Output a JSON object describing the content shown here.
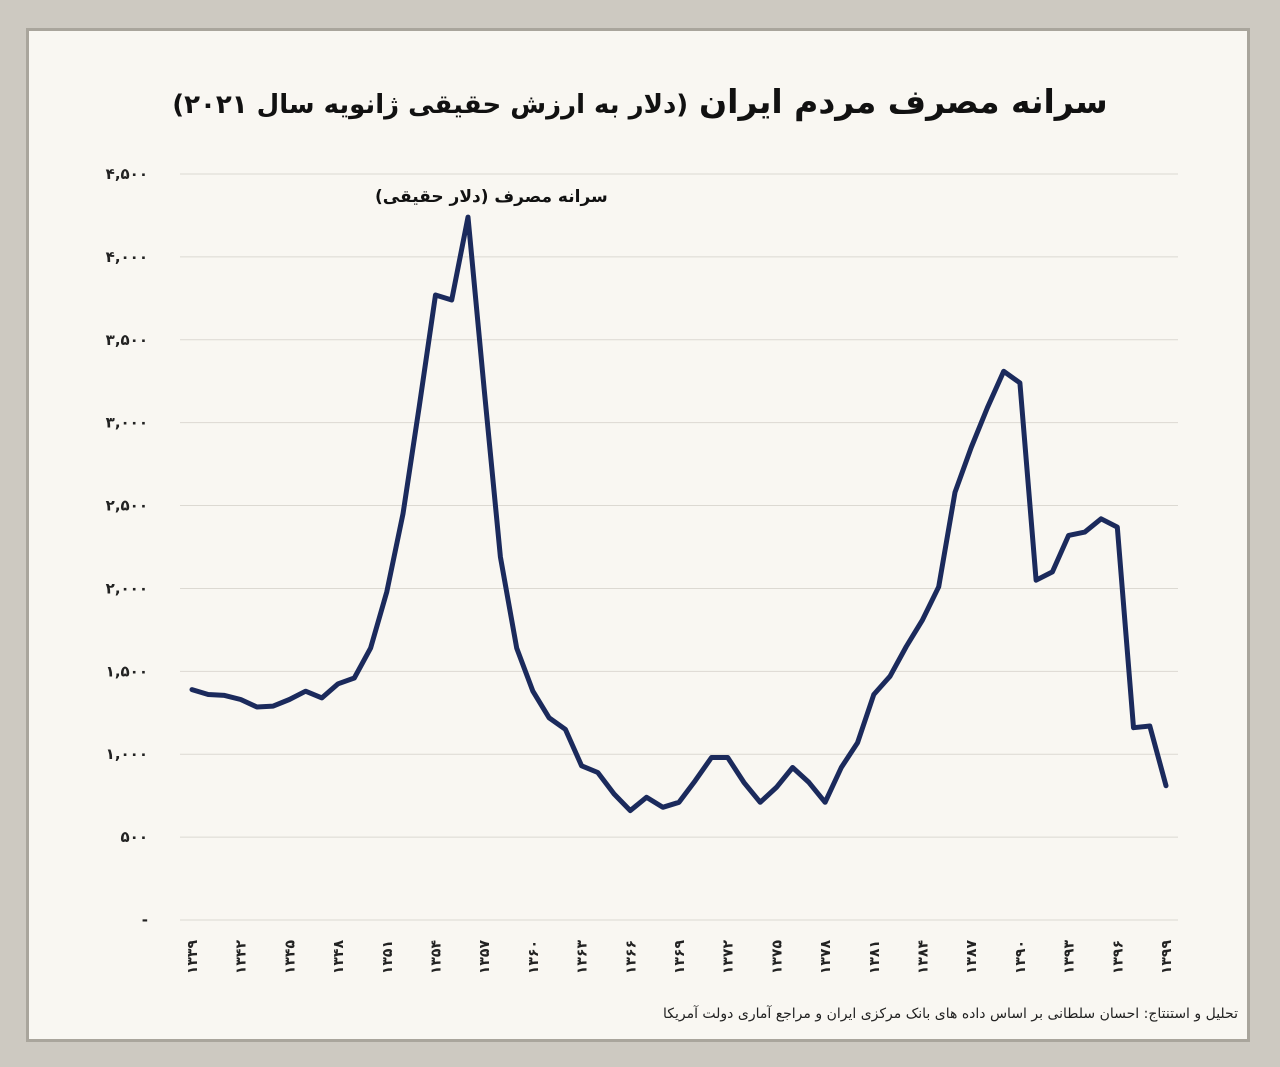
{
  "title_main": "سرانه مصرف مردم ایران",
  "title_sub": "(دلار به ارزش حقیقی ژانویه سال ۲۰۲۱)",
  "source": "تحلیل و استنتاج: احسان سلطانی بر اساس داده های بانک مرکزی ایران و مراجع آماری دولت آمریکا",
  "chart_data": {
    "type": "line",
    "title": "سرانه مصرف مردم ایران (دلار به ارزش حقیقی ژانویه سال ۲۰۲۱)",
    "ylabel": "سرانه مصرف (دلار حقیقی)",
    "xlabel": "",
    "ylim": [
      0,
      4500
    ],
    "yticks": [
      0,
      500,
      1000,
      1500,
      2000,
      2500,
      3000,
      3500,
      4000,
      4500
    ],
    "ytick_labels": [
      "-",
      "۵۰۰",
      "۱,۰۰۰",
      "۱,۵۰۰",
      "۲,۰۰۰",
      "۲,۵۰۰",
      "۳,۰۰۰",
      "۳,۵۰۰",
      "۴,۰۰۰",
      "۴,۵۰۰"
    ],
    "xtick_labels": [
      "۱۳۳۹",
      "۱۳۴۲",
      "۱۳۴۵",
      "۱۳۴۸",
      "۱۳۵۱",
      "۱۳۵۴",
      "۱۳۵۷",
      "۱۳۶۰",
      "۱۳۶۳",
      "۱۳۶۶",
      "۱۳۶۹",
      "۱۳۷۲",
      "۱۳۷۵",
      "۱۳۷۸",
      "۱۳۸۱",
      "۱۳۸۴",
      "۱۳۸۷",
      "۱۳۹۰",
      "۱۳۹۳",
      "۱۳۹۶",
      "۱۳۹۹"
    ],
    "xtick_values": [
      1339,
      1342,
      1345,
      1348,
      1351,
      1354,
      1357,
      1360,
      1363,
      1366,
      1369,
      1372,
      1375,
      1378,
      1381,
      1384,
      1387,
      1390,
      1393,
      1396,
      1399
    ],
    "grid": true,
    "line_color": "#1b2a5c",
    "series": [
      {
        "x": [
          1339,
          1340,
          1341,
          1342,
          1343,
          1344,
          1345,
          1346,
          1347,
          1348,
          1349,
          1350,
          1351,
          1352,
          1353,
          1354,
          1355,
          1356,
          1357,
          1358,
          1359,
          1360,
          1361,
          1362,
          1363,
          1364,
          1365,
          1366,
          1367,
          1368,
          1369,
          1370,
          1371,
          1372,
          1373,
          1374,
          1375,
          1376,
          1377,
          1378,
          1379,
          1380,
          1381,
          1382,
          1383,
          1384,
          1385,
          1386,
          1387,
          1388,
          1389,
          1390,
          1391,
          1392,
          1393,
          1394,
          1395,
          1396,
          1397,
          1398,
          1399
        ],
        "values": [
          1390,
          1360,
          1355,
          1330,
          1285,
          1290,
          1330,
          1380,
          1340,
          1425,
          1460,
          1640,
          1980,
          2450,
          3100,
          3770,
          3740,
          4240,
          3200,
          2190,
          1640,
          1380,
          1220,
          1150,
          930,
          890,
          760,
          660,
          740,
          680,
          710,
          840,
          980,
          980,
          830,
          710,
          800,
          920,
          830,
          710,
          920,
          1070,
          1360,
          1470,
          1650,
          1810,
          2010,
          2580,
          2850,
          3090,
          3310,
          3240,
          2050,
          2100,
          2320,
          2340,
          2420,
          2370,
          1160,
          1170,
          810
        ]
      }
    ]
  }
}
